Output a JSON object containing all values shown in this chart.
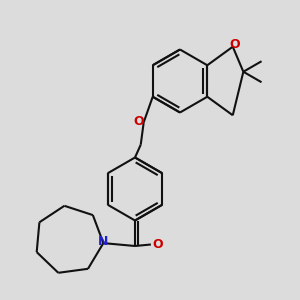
{
  "bg": "#dcdcdc",
  "bc": "#111111",
  "oc": "#cc0000",
  "nc": "#2222cc",
  "lw": 1.5,
  "lw2": 1.0,
  "figsize": [
    3.0,
    3.0
  ],
  "dpi": 100,
  "xlim": [
    -1.5,
    8.5
  ],
  "ylim": [
    -4.5,
    5.5
  ]
}
